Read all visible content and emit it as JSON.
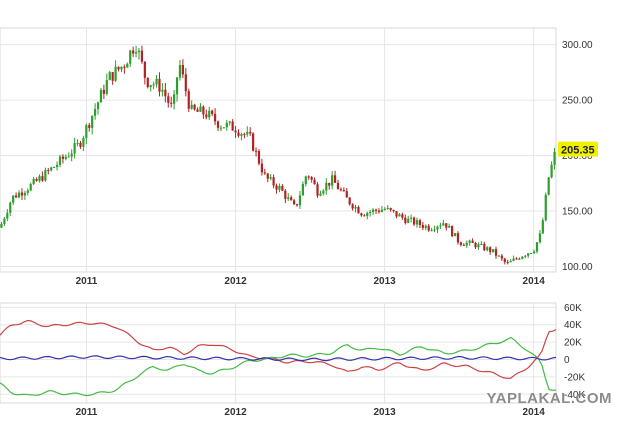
{
  "watermark": "YAPLAKAL.COM",
  "chart_data": [
    {
      "type": "candlestick",
      "title": "",
      "xlabel": "",
      "ylabel": "",
      "x_ticks": [
        "2011",
        "2012",
        "2013",
        "2014"
      ],
      "x_range": [
        2010.42,
        2014.15
      ],
      "y_ticks": [
        "100.00",
        "150.00",
        "200.00",
        "250.00",
        "300.00"
      ],
      "y_tick_values": [
        100,
        150,
        200,
        250,
        300
      ],
      "ylim": [
        95,
        315
      ],
      "grid": true,
      "last_price": "205.35",
      "up_color": "#2e9e2e",
      "down_color": "#b22222",
      "badge_color": "#f0f000",
      "anchors": [
        {
          "t": 2010.42,
          "v": 135
        },
        {
          "t": 2010.5,
          "v": 162
        },
        {
          "t": 2010.65,
          "v": 175
        },
        {
          "t": 2010.8,
          "v": 192
        },
        {
          "t": 2010.95,
          "v": 210
        },
        {
          "t": 2011.05,
          "v": 240
        },
        {
          "t": 2011.15,
          "v": 270
        },
        {
          "t": 2011.25,
          "v": 282
        },
        {
          "t": 2011.33,
          "v": 302
        },
        {
          "t": 2011.4,
          "v": 268
        },
        {
          "t": 2011.5,
          "v": 262
        },
        {
          "t": 2011.58,
          "v": 240
        },
        {
          "t": 2011.62,
          "v": 285
        },
        {
          "t": 2011.7,
          "v": 240
        },
        {
          "t": 2011.8,
          "v": 238
        },
        {
          "t": 2011.9,
          "v": 228
        },
        {
          "t": 2012.0,
          "v": 225
        },
        {
          "t": 2012.1,
          "v": 215
        },
        {
          "t": 2012.2,
          "v": 180
        },
        {
          "t": 2012.3,
          "v": 170
        },
        {
          "t": 2012.4,
          "v": 152
        },
        {
          "t": 2012.48,
          "v": 185
        },
        {
          "t": 2012.55,
          "v": 168
        },
        {
          "t": 2012.65,
          "v": 178
        },
        {
          "t": 2012.75,
          "v": 160
        },
        {
          "t": 2012.85,
          "v": 148
        },
        {
          "t": 2013.0,
          "v": 152
        },
        {
          "t": 2013.15,
          "v": 142
        },
        {
          "t": 2013.3,
          "v": 135
        },
        {
          "t": 2013.4,
          "v": 140
        },
        {
          "t": 2013.5,
          "v": 122
        },
        {
          "t": 2013.6,
          "v": 120
        },
        {
          "t": 2013.72,
          "v": 114
        },
        {
          "t": 2013.82,
          "v": 102
        },
        {
          "t": 2013.92,
          "v": 110
        },
        {
          "t": 2014.0,
          "v": 115
        },
        {
          "t": 2014.05,
          "v": 130
        },
        {
          "t": 2014.1,
          "v": 180
        },
        {
          "t": 2014.15,
          "v": 205.35
        }
      ]
    },
    {
      "type": "line",
      "title": "",
      "xlabel": "",
      "ylabel": "",
      "x_ticks": [
        "2011",
        "2012",
        "2013",
        "2014"
      ],
      "x_range": [
        2010.42,
        2014.15
      ],
      "y_ticks": [
        "60K",
        "40K",
        "20K",
        "0",
        "-20K",
        "-40K"
      ],
      "y_tick_values": [
        60000,
        40000,
        20000,
        0,
        -20000,
        -40000
      ],
      "ylim": [
        -50000,
        65000
      ],
      "grid": true,
      "series": [
        {
          "color": "#cc4444",
          "points": [
            {
              "t": 2010.42,
              "v": 28000
            },
            {
              "t": 2010.5,
              "v": 40000
            },
            {
              "t": 2010.6,
              "v": 44000
            },
            {
              "t": 2010.75,
              "v": 38000
            },
            {
              "t": 2010.9,
              "v": 41000
            },
            {
              "t": 2011.05,
              "v": 42000
            },
            {
              "t": 2011.2,
              "v": 38000
            },
            {
              "t": 2011.35,
              "v": 20000
            },
            {
              "t": 2011.45,
              "v": 10000
            },
            {
              "t": 2011.55,
              "v": 15000
            },
            {
              "t": 2011.65,
              "v": 6000
            },
            {
              "t": 2011.75,
              "v": 15000
            },
            {
              "t": 2011.85,
              "v": 18000
            },
            {
              "t": 2012.0,
              "v": 10000
            },
            {
              "t": 2012.1,
              "v": 3000
            },
            {
              "t": 2012.2,
              "v": 2000
            },
            {
              "t": 2012.35,
              "v": -3000
            },
            {
              "t": 2012.5,
              "v": -2000
            },
            {
              "t": 2012.65,
              "v": -6000
            },
            {
              "t": 2012.75,
              "v": -15000
            },
            {
              "t": 2012.85,
              "v": -8000
            },
            {
              "t": 2012.95,
              "v": -12000
            },
            {
              "t": 2013.1,
              "v": -4000
            },
            {
              "t": 2013.25,
              "v": -13000
            },
            {
              "t": 2013.4,
              "v": -5000
            },
            {
              "t": 2013.55,
              "v": -8000
            },
            {
              "t": 2013.7,
              "v": -15000
            },
            {
              "t": 2013.85,
              "v": -22000
            },
            {
              "t": 2013.95,
              "v": -10000
            },
            {
              "t": 2014.05,
              "v": 5000
            },
            {
              "t": 2014.1,
              "v": 33000
            },
            {
              "t": 2014.15,
              "v": 35000
            }
          ]
        },
        {
          "color": "#44bb44",
          "points": [
            {
              "t": 2010.42,
              "v": -28000
            },
            {
              "t": 2010.5,
              "v": -38000
            },
            {
              "t": 2010.6,
              "v": -42000
            },
            {
              "t": 2010.75,
              "v": -37000
            },
            {
              "t": 2010.9,
              "v": -40000
            },
            {
              "t": 2011.05,
              "v": -40000
            },
            {
              "t": 2011.2,
              "v": -35000
            },
            {
              "t": 2011.35,
              "v": -18000
            },
            {
              "t": 2011.45,
              "v": -8000
            },
            {
              "t": 2011.55,
              "v": -13000
            },
            {
              "t": 2011.65,
              "v": -4000
            },
            {
              "t": 2011.75,
              "v": -13000
            },
            {
              "t": 2011.85,
              "v": -16000
            },
            {
              "t": 2012.0,
              "v": -8000
            },
            {
              "t": 2012.1,
              "v": -1000
            },
            {
              "t": 2012.2,
              "v": 0
            },
            {
              "t": 2012.35,
              "v": 5000
            },
            {
              "t": 2012.5,
              "v": 4000
            },
            {
              "t": 2012.65,
              "v": 8000
            },
            {
              "t": 2012.75,
              "v": 17000
            },
            {
              "t": 2012.85,
              "v": 10000
            },
            {
              "t": 2012.95,
              "v": 14000
            },
            {
              "t": 2013.1,
              "v": 6000
            },
            {
              "t": 2013.25,
              "v": 15000
            },
            {
              "t": 2013.4,
              "v": 7000
            },
            {
              "t": 2013.55,
              "v": 10000
            },
            {
              "t": 2013.7,
              "v": 17000
            },
            {
              "t": 2013.85,
              "v": 24000
            },
            {
              "t": 2013.95,
              "v": 12000
            },
            {
              "t": 2014.05,
              "v": -3000
            },
            {
              "t": 2014.1,
              "v": -33000
            },
            {
              "t": 2014.15,
              "v": -36000
            }
          ]
        },
        {
          "color": "#3333aa",
          "points": [
            {
              "t": 2010.42,
              "v": 1000
            },
            {
              "t": 2011.0,
              "v": 3000
            },
            {
              "t": 2011.5,
              "v": 2000
            },
            {
              "t": 2012.0,
              "v": 1000
            },
            {
              "t": 2012.5,
              "v": 0
            },
            {
              "t": 2013.0,
              "v": 1000
            },
            {
              "t": 2013.5,
              "v": 2000
            },
            {
              "t": 2014.0,
              "v": 1000
            },
            {
              "t": 2014.15,
              "v": 1000
            }
          ]
        }
      ]
    }
  ]
}
